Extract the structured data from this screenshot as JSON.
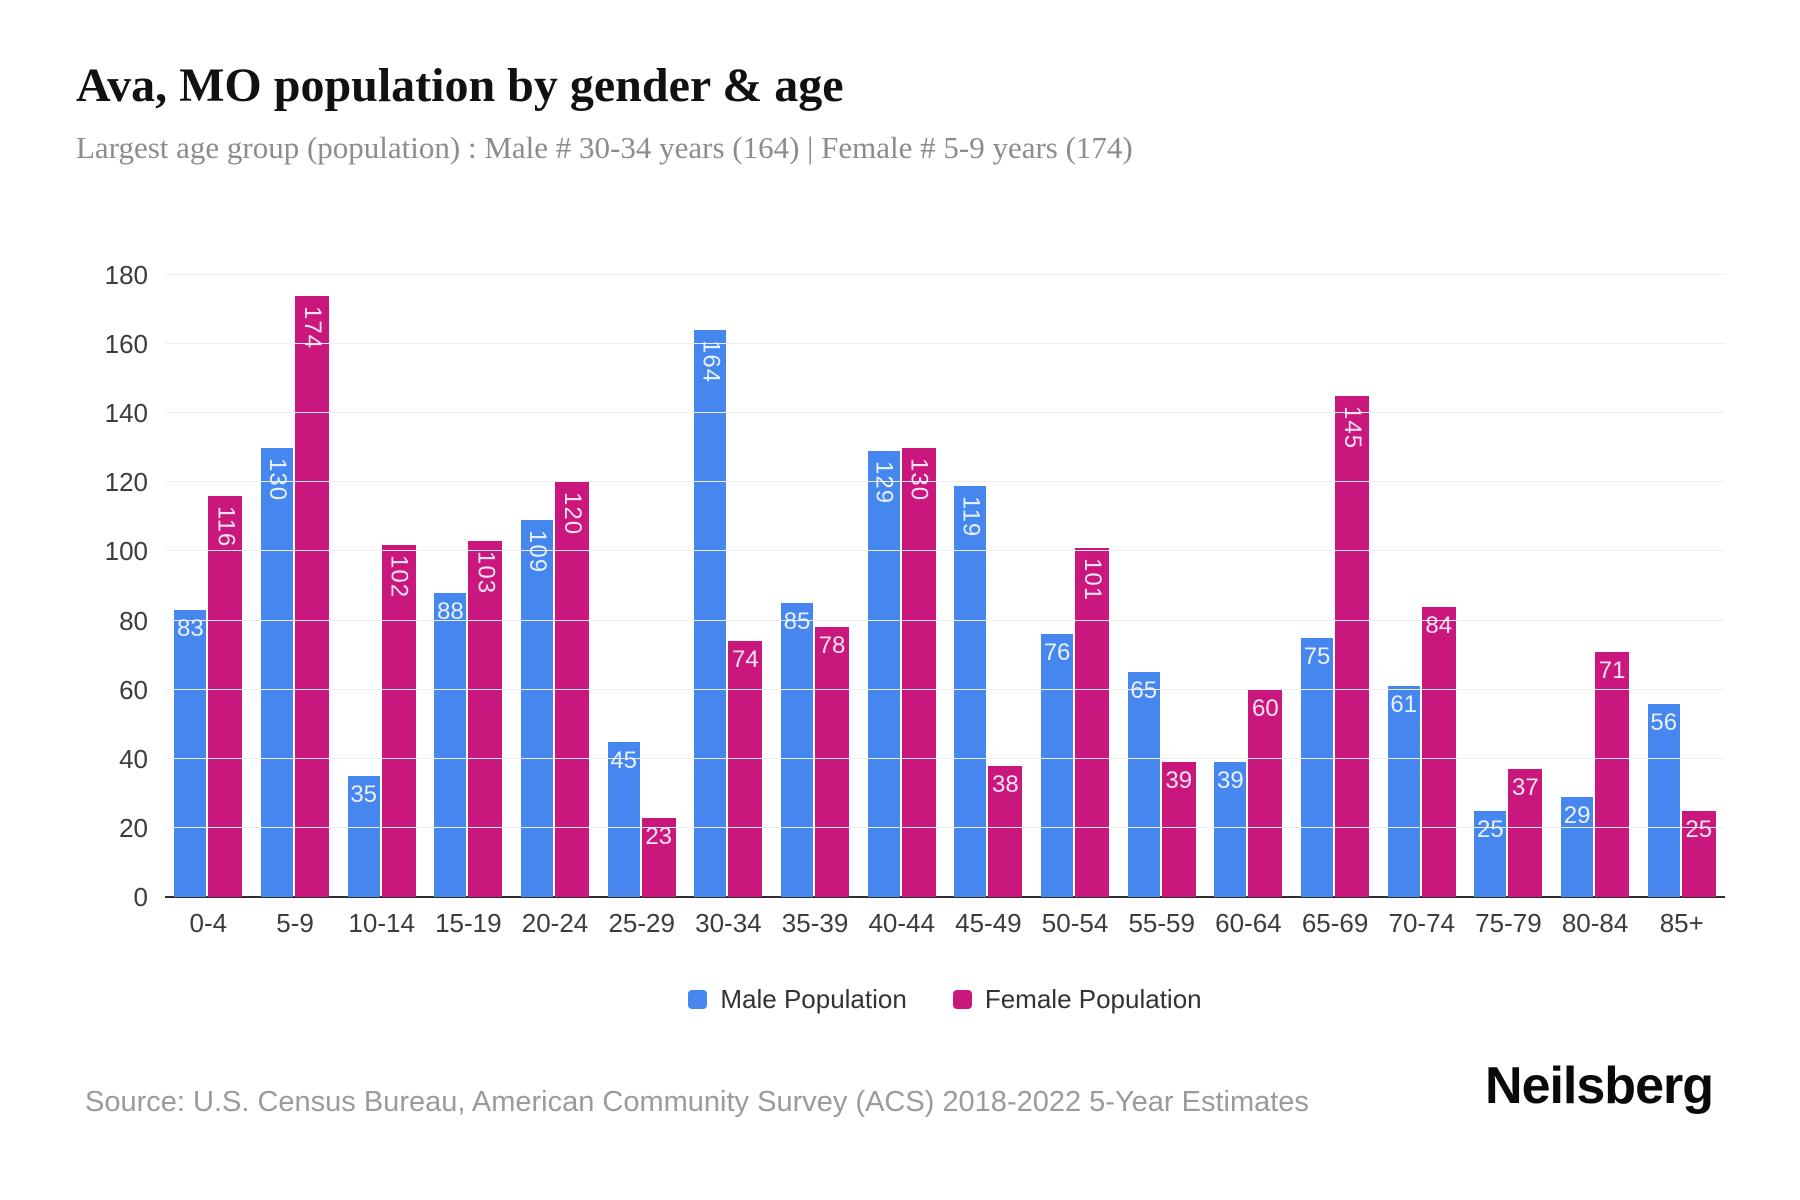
{
  "header": {
    "title": "Ava, MO population by gender & age",
    "subtitle": "Largest age group (population) : Male # 30-34 years (164) | Female # 5-9 years (174)"
  },
  "colors": {
    "male": "#4587ee",
    "female": "#c9177e",
    "gridline": "#efefef",
    "axis_line": "#2f2f2f",
    "tick_label": "#3c3c3c",
    "value_label": "rgba(255,255,255,0.88)"
  },
  "legend": {
    "items": [
      {
        "label": "Male Population",
        "color": "#4587ee"
      },
      {
        "label": "Female Population",
        "color": "#c9177e"
      }
    ]
  },
  "chart_data": {
    "type": "bar",
    "title": "Ava, MO population by gender & age",
    "subtitle": "Largest age group (population) : Male # 30-34 years (164) | Female # 5-9 years (174)",
    "categories": [
      "0-4",
      "5-9",
      "10-14",
      "15-19",
      "20-24",
      "25-29",
      "30-34",
      "35-39",
      "40-44",
      "45-49",
      "50-54",
      "55-59",
      "60-64",
      "65-69",
      "70-74",
      "75-79",
      "80-84",
      "85+"
    ],
    "series": [
      {
        "name": "Male Population",
        "color": "#4587ee",
        "values": [
          83,
          130,
          35,
          88,
          109,
          45,
          164,
          85,
          129,
          119,
          76,
          65,
          39,
          75,
          61,
          25,
          29,
          56
        ]
      },
      {
        "name": "Female Population",
        "color": "#c9177e",
        "values": [
          116,
          174,
          102,
          103,
          120,
          23,
          74,
          78,
          130,
          38,
          101,
          39,
          60,
          145,
          84,
          37,
          71,
          25
        ]
      }
    ],
    "xlabel": "",
    "ylabel": "",
    "ylim": [
      0,
      180
    ],
    "yticks": [
      0,
      20,
      40,
      60,
      80,
      100,
      120,
      140,
      160,
      180
    ],
    "grid": "horizontal",
    "legend_position": "bottom-center",
    "value_labels": "inside-top, rotated 90deg when >= 100"
  },
  "footer": {
    "source": "Source: U.S. Census Bureau, American Community Survey (ACS) 2018-2022 5-Year Estimates",
    "logo": "Neilsberg"
  }
}
